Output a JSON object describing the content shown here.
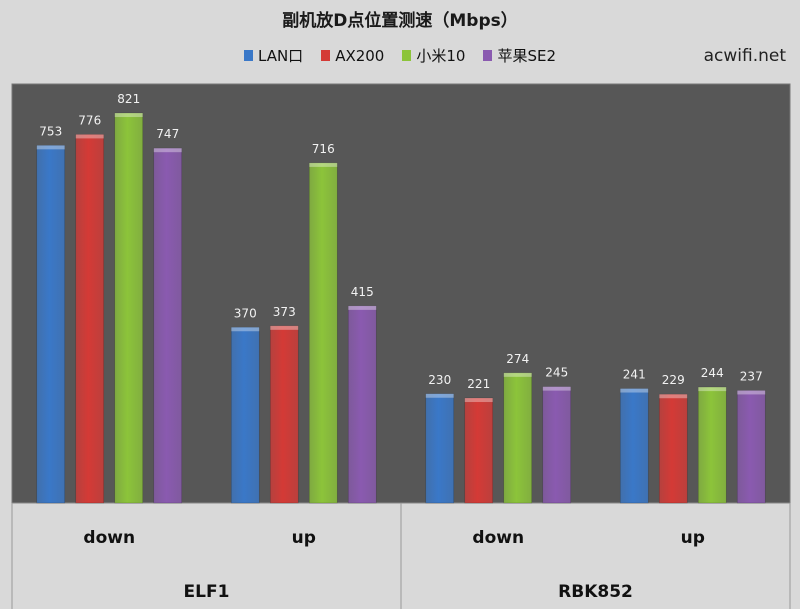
{
  "chart_data": {
    "type": "bar",
    "title": "副机放D点位置测速（Mbps）",
    "watermark": "acwifi.net",
    "ylim": [
      0,
      900
    ],
    "grid": false,
    "legend_position": "top-center",
    "groups": [
      {
        "label": "ELF1",
        "categories": [
          "down",
          "up"
        ]
      },
      {
        "label": "RBK852",
        "categories": [
          "down",
          "up"
        ]
      }
    ],
    "categories": [
      "down",
      "up",
      "down",
      "up"
    ],
    "series": [
      {
        "name": "LAN口",
        "color": "#3a78c8",
        "values": [
          753,
          370,
          230,
          241
        ]
      },
      {
        "name": "AX200",
        "color": "#d43a36",
        "values": [
          776,
          373,
          221,
          229
        ]
      },
      {
        "name": "小米10",
        "color": "#8cc43a",
        "values": [
          821,
          716,
          274,
          244
        ]
      },
      {
        "name": "苹果SE2",
        "color": "#8a5ab0",
        "values": [
          747,
          415,
          245,
          237
        ]
      }
    ],
    "colors": {
      "plot_bg": "#575757",
      "page_bg": "#d9d9d9",
      "axis_band": "#d9d9d9",
      "text": "#111111"
    }
  }
}
